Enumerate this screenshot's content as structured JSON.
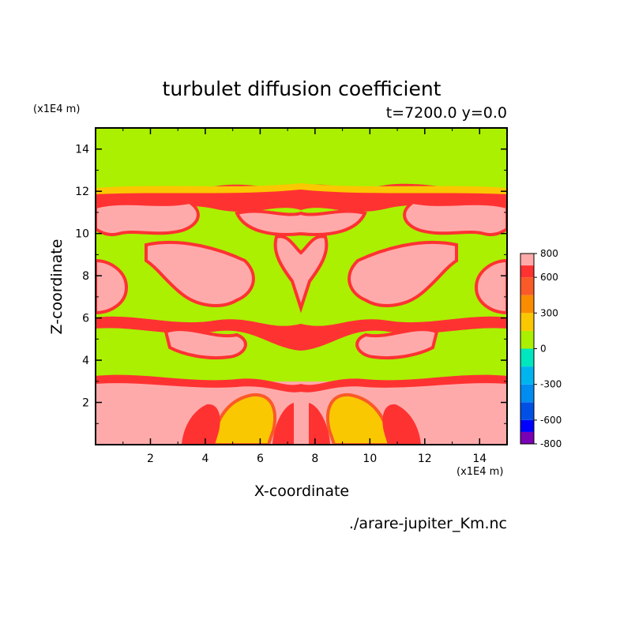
{
  "chart_data": {
    "type": "heatmap",
    "title": "turbulet diffusion coefficient",
    "subtitle": "t=7200.0 y=0.0",
    "xlabel": "X-coordinate",
    "ylabel": "Z-coordinate",
    "x_unit": "(x1E4 m)",
    "y_unit": "(x1E4 m)",
    "xlim": [
      0,
      15
    ],
    "ylim": [
      0,
      15
    ],
    "x_ticks": [
      "2",
      "4",
      "6",
      "8",
      "10",
      "12",
      "14"
    ],
    "y_ticks": [
      "2",
      "4",
      "6",
      "8",
      "10",
      "12",
      "14"
    ],
    "source_file": "./arare-jupiter_Km.nc",
    "colorbar": {
      "levels": [
        -800,
        -700,
        -600,
        -450,
        -300,
        -150,
        0,
        150,
        300,
        450,
        600,
        700,
        800
      ],
      "tick_labels": [
        "800",
        "600",
        "300",
        "0",
        "-300",
        "-600",
        "-800"
      ],
      "colors": [
        "#7a00b4",
        "#0000ff",
        "#0050e6",
        "#008cf0",
        "#00b4f0",
        "#00e6be",
        "#aaf000",
        "#fac800",
        "#fa8c00",
        "#fa5a28",
        "#ff3232",
        "#ffaaaa"
      ]
    },
    "regions_description_units": "x,z in 1E4 m; value = Km band",
    "features": [
      {
        "z_range": [
          12,
          15
        ],
        "value": 0
      },
      {
        "z_range": [
          3,
          12
        ],
        "value": "mixed 0 to 800"
      },
      {
        "z_range": [
          0,
          3
        ],
        "value": 800
      }
    ]
  }
}
